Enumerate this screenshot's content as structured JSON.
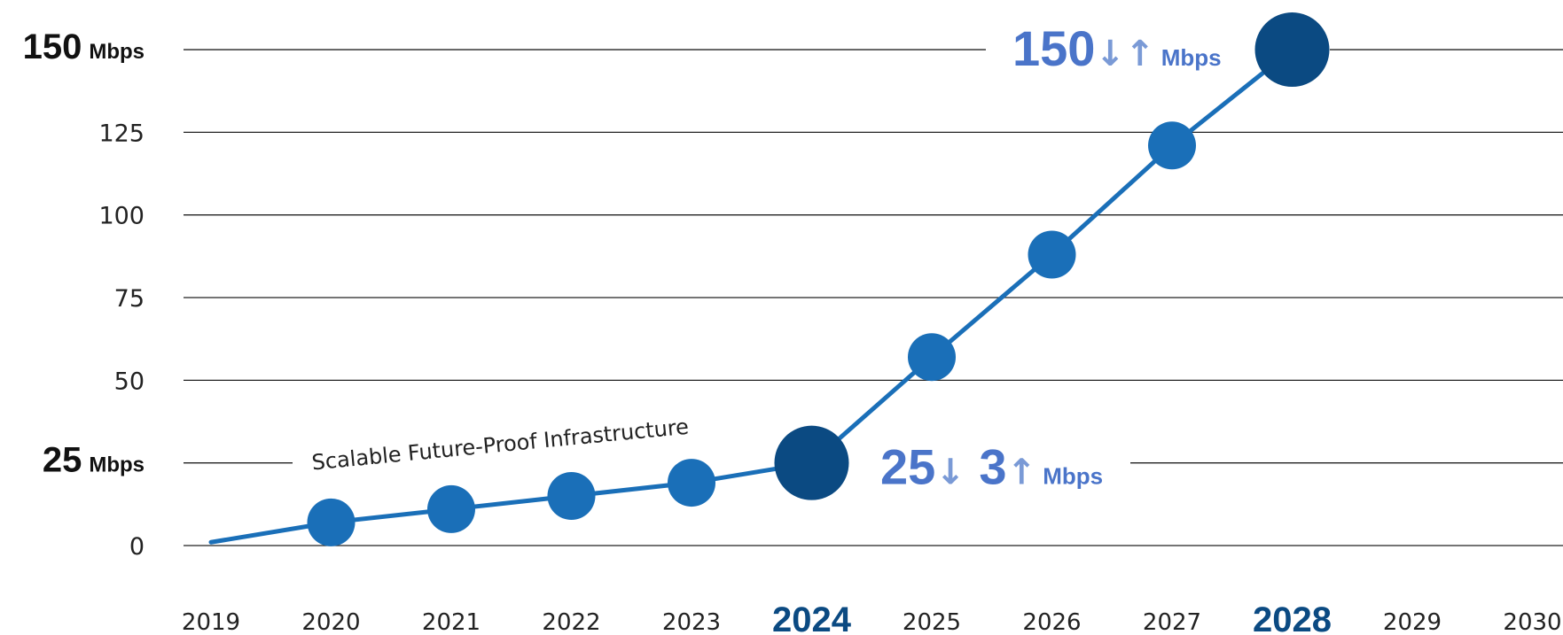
{
  "chart_data": {
    "type": "line",
    "x": [
      2019,
      2020,
      2021,
      2022,
      2023,
      2024,
      2025,
      2026,
      2027,
      2028
    ],
    "y": [
      1,
      7,
      11,
      15,
      19,
      25,
      57,
      88,
      121,
      150
    ],
    "x_ticks": [
      "2019",
      "2020",
      "2021",
      "2022",
      "2023",
      "2024",
      "2025",
      "2026",
      "2027",
      "2028",
      "2029",
      "2030"
    ],
    "highlight_x": [
      "2024",
      "2028"
    ],
    "highlight_points": [
      2024,
      2028
    ],
    "y_ticks": [
      {
        "value": 0,
        "label": "0"
      },
      {
        "value": 25,
        "label": "25",
        "unit": "Mbps",
        "emphasis": true
      },
      {
        "value": 50,
        "label": "50"
      },
      {
        "value": 75,
        "label": "75"
      },
      {
        "value": 100,
        "label": "100"
      },
      {
        "value": 125,
        "label": "125"
      },
      {
        "value": 150,
        "label": "150",
        "unit": "Mbps",
        "emphasis": true
      }
    ],
    "ylim": [
      0,
      150
    ],
    "grid": true,
    "curve_label": "Scalable Future-Proof Infrastructure",
    "annotations": [
      {
        "at_x": 2024,
        "value": 25,
        "parts": [
          {
            "text": "25",
            "role": "big"
          },
          {
            "text": "↓",
            "role": "arrow"
          },
          {
            "text": " 3",
            "role": "big"
          },
          {
            "text": "↑",
            "role": "arrow"
          },
          {
            "text": " Mbps",
            "role": "unit"
          }
        ]
      },
      {
        "at_x": 2028,
        "value": 150,
        "parts": [
          {
            "text": "150",
            "role": "big"
          },
          {
            "text": "↓↑",
            "role": "arrow"
          },
          {
            "text": " Mbps",
            "role": "unit"
          }
        ]
      }
    ]
  },
  "colors": {
    "line": "#1a6fb8",
    "point": "#1a6fb8",
    "highlight_point": "#0b4a82",
    "grid": "#222222",
    "annotation": "#4a74c9"
  }
}
